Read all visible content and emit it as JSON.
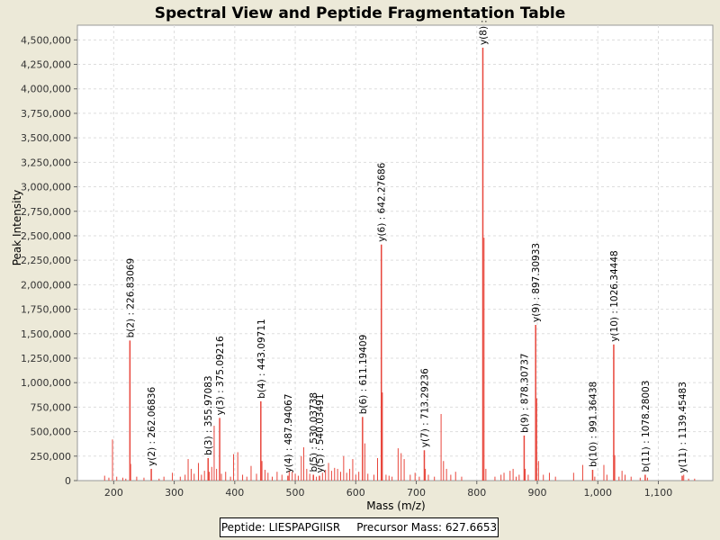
{
  "chart_data": {
    "type": "bar",
    "title": "Spectral View and Peptide Fragmentation Table",
    "xlabel": "Mass (m/z)",
    "ylabel": "Peak Intensity",
    "xlim": [
      140,
      1190
    ],
    "ylim": [
      0,
      4650000
    ],
    "xticks": [
      200,
      300,
      400,
      500,
      600,
      700,
      800,
      900,
      1000,
      1100
    ],
    "xtick_labels": [
      "200",
      "300",
      "400",
      "500",
      "600",
      "700",
      "800",
      "900",
      "1,000",
      "1,100"
    ],
    "yticks": [
      0,
      250000,
      500000,
      750000,
      1000000,
      1250000,
      1500000,
      1750000,
      2000000,
      2250000,
      2500000,
      2750000,
      3000000,
      3250000,
      3500000,
      3750000,
      4000000,
      4250000,
      4500000
    ],
    "ytick_labels": [
      "0",
      "250,000",
      "500,000",
      "750,000",
      "1,000,000",
      "1,250,000",
      "1,500,000",
      "1,750,000",
      "2,000,000",
      "2,250,000",
      "2,500,000",
      "2,750,000",
      "3,000,000",
      "3,250,000",
      "3,500,000",
      "3,750,000",
      "4,000,000",
      "4,250,000",
      "4,500,000"
    ],
    "grid": true,
    "peak_color": "#e8463c",
    "annotated_peaks": [
      {
        "mz": 226.8,
        "intensity": 1430000,
        "label": "b(2) : 226.83069"
      },
      {
        "mz": 262.1,
        "intensity": 120000,
        "label": "y(2) : 262.06836"
      },
      {
        "mz": 356.0,
        "intensity": 230000,
        "label": "b(3) : 355.97083"
      },
      {
        "mz": 375.1,
        "intensity": 640000,
        "label": "y(3) : 375.09216"
      },
      {
        "mz": 443.1,
        "intensity": 810000,
        "label": "b(4) : 443.09711"
      },
      {
        "mz": 487.9,
        "intensity": 50000,
        "label": "y(4) : 487.94067"
      },
      {
        "mz": 530.0,
        "intensity": 60000,
        "label": "b(5) : 530.03738"
      },
      {
        "mz": 540.0,
        "intensity": 50000,
        "label": "y(5) : 540.03491"
      },
      {
        "mz": 611.2,
        "intensity": 650000,
        "label": "b(6) : 611.19409"
      },
      {
        "mz": 642.3,
        "intensity": 2410000,
        "label": "y(6) : 642.27686"
      },
      {
        "mz": 713.3,
        "intensity": 310000,
        "label": "y(7) : 713.29236"
      },
      {
        "mz": 810.0,
        "intensity": 4420000,
        "label": "y(8) :"
      },
      {
        "mz": 878.3,
        "intensity": 460000,
        "label": "b(9) : 878.30737"
      },
      {
        "mz": 897.3,
        "intensity": 1590000,
        "label": "y(9) : 897.30933"
      },
      {
        "mz": 991.4,
        "intensity": 110000,
        "label": "b(10) : 991.36438"
      },
      {
        "mz": 1026.3,
        "intensity": 1390000,
        "label": "y(10) : 1026.34448"
      },
      {
        "mz": 1078.3,
        "intensity": 60000,
        "label": "b(11) : 1078.28003"
      },
      {
        "mz": 1139.5,
        "intensity": 50000,
        "label": "y(11) : 1139.45483"
      }
    ],
    "other_peaks": [
      {
        "mz": 185,
        "intensity": 50000
      },
      {
        "mz": 192,
        "intensity": 30000
      },
      {
        "mz": 198,
        "intensity": 420000
      },
      {
        "mz": 205,
        "intensity": 40000
      },
      {
        "mz": 215,
        "intensity": 30000
      },
      {
        "mz": 220,
        "intensity": 20000
      },
      {
        "mz": 228,
        "intensity": 170000
      },
      {
        "mz": 238,
        "intensity": 40000
      },
      {
        "mz": 250,
        "intensity": 30000
      },
      {
        "mz": 275,
        "intensity": 20000
      },
      {
        "mz": 283,
        "intensity": 40000
      },
      {
        "mz": 297,
        "intensity": 80000
      },
      {
        "mz": 310,
        "intensity": 40000
      },
      {
        "mz": 318,
        "intensity": 60000
      },
      {
        "mz": 323,
        "intensity": 220000
      },
      {
        "mz": 328,
        "intensity": 120000
      },
      {
        "mz": 333,
        "intensity": 70000
      },
      {
        "mz": 340,
        "intensity": 180000
      },
      {
        "mz": 345,
        "intensity": 60000
      },
      {
        "mz": 350,
        "intensity": 100000
      },
      {
        "mz": 358,
        "intensity": 90000
      },
      {
        "mz": 362,
        "intensity": 140000
      },
      {
        "mz": 366,
        "intensity": 560000
      },
      {
        "mz": 370,
        "intensity": 120000
      },
      {
        "mz": 378,
        "intensity": 70000
      },
      {
        "mz": 385,
        "intensity": 90000
      },
      {
        "mz": 393,
        "intensity": 40000
      },
      {
        "mz": 398,
        "intensity": 270000
      },
      {
        "mz": 405,
        "intensity": 290000
      },
      {
        "mz": 413,
        "intensity": 60000
      },
      {
        "mz": 420,
        "intensity": 40000
      },
      {
        "mz": 427,
        "intensity": 150000
      },
      {
        "mz": 436,
        "intensity": 70000
      },
      {
        "mz": 445,
        "intensity": 200000
      },
      {
        "mz": 450,
        "intensity": 110000
      },
      {
        "mz": 455,
        "intensity": 80000
      },
      {
        "mz": 462,
        "intensity": 40000
      },
      {
        "mz": 470,
        "intensity": 90000
      },
      {
        "mz": 478,
        "intensity": 60000
      },
      {
        "mz": 490,
        "intensity": 100000
      },
      {
        "mz": 495,
        "intensity": 90000
      },
      {
        "mz": 500,
        "intensity": 70000
      },
      {
        "mz": 505,
        "intensity": 50000
      },
      {
        "mz": 510,
        "intensity": 250000
      },
      {
        "mz": 514,
        "intensity": 340000
      },
      {
        "mz": 519,
        "intensity": 120000
      },
      {
        "mz": 524,
        "intensity": 70000
      },
      {
        "mz": 535,
        "intensity": 40000
      },
      {
        "mz": 545,
        "intensity": 80000
      },
      {
        "mz": 550,
        "intensity": 110000
      },
      {
        "mz": 555,
        "intensity": 180000
      },
      {
        "mz": 560,
        "intensity": 100000
      },
      {
        "mz": 565,
        "intensity": 130000
      },
      {
        "mz": 570,
        "intensity": 120000
      },
      {
        "mz": 575,
        "intensity": 90000
      },
      {
        "mz": 580,
        "intensity": 250000
      },
      {
        "mz": 585,
        "intensity": 80000
      },
      {
        "mz": 590,
        "intensity": 120000
      },
      {
        "mz": 595,
        "intensity": 220000
      },
      {
        "mz": 600,
        "intensity": 60000
      },
      {
        "mz": 605,
        "intensity": 90000
      },
      {
        "mz": 615,
        "intensity": 380000
      },
      {
        "mz": 620,
        "intensity": 70000
      },
      {
        "mz": 630,
        "intensity": 60000
      },
      {
        "mz": 636,
        "intensity": 230000
      },
      {
        "mz": 644,
        "intensity": 900000
      },
      {
        "mz": 650,
        "intensity": 60000
      },
      {
        "mz": 655,
        "intensity": 50000
      },
      {
        "mz": 660,
        "intensity": 40000
      },
      {
        "mz": 670,
        "intensity": 330000
      },
      {
        "mz": 675,
        "intensity": 280000
      },
      {
        "mz": 680,
        "intensity": 220000
      },
      {
        "mz": 690,
        "intensity": 60000
      },
      {
        "mz": 698,
        "intensity": 80000
      },
      {
        "mz": 705,
        "intensity": 40000
      },
      {
        "mz": 715,
        "intensity": 120000
      },
      {
        "mz": 720,
        "intensity": 60000
      },
      {
        "mz": 730,
        "intensity": 40000
      },
      {
        "mz": 741,
        "intensity": 680000
      },
      {
        "mz": 745,
        "intensity": 200000
      },
      {
        "mz": 750,
        "intensity": 120000
      },
      {
        "mz": 757,
        "intensity": 60000
      },
      {
        "mz": 765,
        "intensity": 90000
      },
      {
        "mz": 775,
        "intensity": 40000
      },
      {
        "mz": 812,
        "intensity": 2480000
      },
      {
        "mz": 815,
        "intensity": 120000
      },
      {
        "mz": 830,
        "intensity": 40000
      },
      {
        "mz": 840,
        "intensity": 60000
      },
      {
        "mz": 845,
        "intensity": 80000
      },
      {
        "mz": 855,
        "intensity": 100000
      },
      {
        "mz": 860,
        "intensity": 120000
      },
      {
        "mz": 865,
        "intensity": 40000
      },
      {
        "mz": 870,
        "intensity": 60000
      },
      {
        "mz": 880,
        "intensity": 120000
      },
      {
        "mz": 885,
        "intensity": 60000
      },
      {
        "mz": 899,
        "intensity": 840000
      },
      {
        "mz": 902,
        "intensity": 200000
      },
      {
        "mz": 910,
        "intensity": 60000
      },
      {
        "mz": 920,
        "intensity": 80000
      },
      {
        "mz": 930,
        "intensity": 40000
      },
      {
        "mz": 960,
        "intensity": 80000
      },
      {
        "mz": 975,
        "intensity": 160000
      },
      {
        "mz": 995,
        "intensity": 40000
      },
      {
        "mz": 1010,
        "intensity": 160000
      },
      {
        "mz": 1015,
        "intensity": 60000
      },
      {
        "mz": 1028,
        "intensity": 260000
      },
      {
        "mz": 1035,
        "intensity": 40000
      },
      {
        "mz": 1040,
        "intensity": 100000
      },
      {
        "mz": 1045,
        "intensity": 60000
      },
      {
        "mz": 1055,
        "intensity": 40000
      },
      {
        "mz": 1070,
        "intensity": 30000
      },
      {
        "mz": 1082,
        "intensity": 30000
      },
      {
        "mz": 1142,
        "intensity": 60000
      },
      {
        "mz": 1150,
        "intensity": 20000
      },
      {
        "mz": 1160,
        "intensity": 20000
      }
    ]
  },
  "legend": {
    "peptide": "Peptide: LIESPAPGIISR",
    "precursor": "Precursor Mass: 627.6653"
  }
}
